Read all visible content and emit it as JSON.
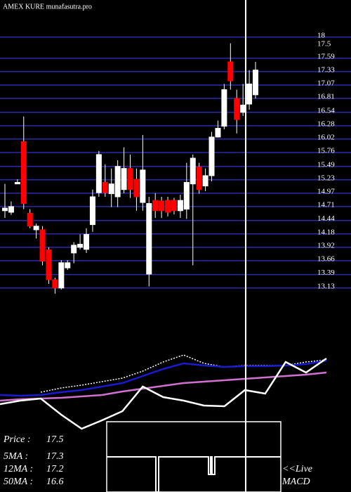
{
  "title": "AMEX  KURE munafasutra.pro",
  "chart_data": [
    {
      "type": "candlestick",
      "open": [
        14.63,
        14.6,
        15.15,
        15.97,
        14.58,
        14.26,
        14.26,
        13.87,
        13.29,
        13.13,
        13.52,
        13.81,
        13.92,
        13.88,
        14.36,
        14.98,
        15.18,
        14.96,
        14.9,
        15.04,
        15.45,
        15.24,
        14.79,
        13.4,
        14.83,
        14.82,
        14.83,
        14.83,
        14.63,
        14.66,
        15.15,
        15.48,
        15.11,
        15.31,
        16.06,
        16.27,
        17.52,
        16.81,
        16.54,
        16.7,
        16.88
      ],
      "high": [
        15.15,
        14.81,
        15.24,
        16.46,
        14.66,
        14.38,
        14.33,
        13.92,
        13.33,
        13.67,
        13.67,
        14.02,
        14.17,
        14.29,
        15.04,
        15.79,
        15.53,
        15.45,
        15.61,
        15.86,
        15.72,
        15.45,
        16.1,
        14.9,
        14.97,
        14.9,
        14.9,
        14.88,
        14.94,
        15.56,
        15.72,
        15.56,
        15.45,
        16.16,
        16.38,
        17.09,
        17.88,
        16.98,
        17.09,
        17.36,
        17.52
      ],
      "low": [
        14.49,
        14.55,
        15.15,
        14.66,
        14.29,
        14.09,
        13.57,
        13.21,
        13.02,
        13.1,
        13.48,
        13.61,
        13.88,
        13.81,
        14.22,
        14.9,
        14.9,
        14.7,
        14.7,
        14.97,
        14.88,
        14.63,
        14.63,
        13.16,
        14.49,
        14.49,
        14.52,
        14.56,
        14.49,
        14.47,
        13.57,
        14.96,
        15.01,
        15.2,
        16.05,
        16.21,
        16.98,
        16.13,
        16.47,
        16.59,
        16.81
      ],
      "close": [
        14.68,
        14.71,
        15.18,
        14.77,
        14.33,
        14.33,
        13.65,
        13.29,
        13.13,
        13.62,
        13.62,
        13.96,
        13.98,
        14.17,
        14.9,
        15.72,
        14.98,
        15.15,
        15.49,
        15.45,
        15.04,
        14.9,
        15.42,
        14.77,
        14.63,
        14.63,
        14.6,
        14.63,
        14.83,
        15.18,
        15.65,
        15.04,
        15.31,
        16.06,
        16.23,
        16.98,
        17.15,
        16.4,
        16.68,
        17.09,
        17.36
      ],
      "up_color": "#ffffff",
      "down_color": "#ff0000",
      "grid_color": "#2b2ba8",
      "ylim": [
        12.99,
        18.72
      ],
      "yticks": [
        18,
        17.59,
        17.33,
        17.07,
        16.81,
        16.54,
        16.28,
        16.02,
        15.76,
        15.49,
        15.23,
        14.97,
        14.71,
        14.44,
        14.18,
        13.92,
        13.66,
        13.39,
        13.13
      ],
      "grid": true,
      "price_marker": 17.5
    },
    {
      "type": "line",
      "ylim": [
        0,
        110
      ],
      "series": [
        {
          "color": "#ffffff",
          "dashed": true,
          "values": [
            null,
            null,
            52,
            58,
            62,
            67,
            72,
            82,
            95,
            105,
            93,
            88,
            90,
            90,
            90,
            95,
            98
          ]
        },
        {
          "color": "#1a1ad0",
          "dashed": false,
          "values": [
            48,
            47,
            48,
            52,
            55,
            60,
            65,
            75,
            85,
            93,
            90,
            88,
            89,
            89,
            90,
            92,
            97
          ]
        },
        {
          "color": "#d070d0",
          "dashed": false,
          "values": [
            40,
            42,
            43,
            44,
            46,
            48,
            53,
            57,
            61,
            65,
            67,
            69,
            71,
            73,
            75,
            77,
            80
          ]
        },
        {
          "color": "#ffffff",
          "dashed": false,
          "values": [
            35,
            40,
            43,
            20,
            0,
            12,
            25,
            60,
            45,
            40,
            33,
            32,
            55,
            50,
            95,
            80,
            100
          ]
        }
      ]
    }
  ],
  "indicators": [
    {
      "label": "Price   :",
      "value": 17.5
    },
    {
      "label": "5MA   :",
      "value": 17.3
    },
    {
      "label": "12MA  :",
      "value": 17.2
    },
    {
      "label": "50MA  :",
      "value": 16.6
    }
  ],
  "live": "<<Live",
  "macd": "MACD"
}
